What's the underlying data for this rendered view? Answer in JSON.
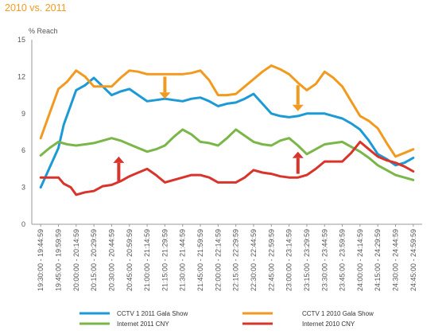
{
  "chart_data": {
    "type": "line",
    "title": "2010 vs. 2011",
    "ylabel": "% Reach",
    "xlabel": "",
    "ylim": [
      0,
      15
    ],
    "yticks": [
      0,
      3,
      6,
      9,
      12,
      15
    ],
    "grid": false,
    "legend_position": "bottom",
    "categories": [
      "19:30:00 - 19:44:59",
      "19:45:00 - 19:59:59",
      "20:00:00 - 20:14:59",
      "20:15:00 - 20:29:59",
      "20:30:00 - 20:44:59",
      "20:45:00 - 20:59:59",
      "21:00:00 - 21:14:59",
      "21:15:00 - 21:29:59",
      "21:30:00 - 21:44:59",
      "21:45:00 - 21:59:59",
      "22:00:00 - 22:14:59",
      "22:15:00 - 22:29:59",
      "22:30:00 - 22:44:59",
      "22:45:00 - 22:59:59",
      "23:00:00 - 23:14:59",
      "23:15:00 - 23:29:59",
      "23:30:00 - 23:44:59",
      "23:45:00 - 23:59:59",
      "24:00:00 - 24:14:59",
      "24:15:00 - 24:29:59",
      "24:30:00 - 24:44:59",
      "24:45:00 - 24:59:59"
    ],
    "series": [
      {
        "name": "CCTV 1 2011 Gala Show",
        "color": "#1b9ad6",
        "x": [
          0,
          1,
          1.3,
          2,
          2.5,
          3,
          3.5,
          4,
          4.5,
          5,
          5.5,
          6,
          6.5,
          7,
          7.5,
          8,
          8.5,
          9,
          9.5,
          10,
          10.5,
          11,
          11.5,
          12,
          12.5,
          13,
          13.5,
          14,
          14.5,
          15,
          15.5,
          16,
          16.5,
          17,
          17.5,
          18,
          18.5,
          19,
          19.5,
          20,
          20.5,
          21
        ],
        "values": [
          3.0,
          6.2,
          8.1,
          10.9,
          11.3,
          11.9,
          11.2,
          10.5,
          10.8,
          11.0,
          10.5,
          10.0,
          10.1,
          10.2,
          10.1,
          10.0,
          10.2,
          10.3,
          10.0,
          9.6,
          9.8,
          9.9,
          10.2,
          10.6,
          9.8,
          9.0,
          8.8,
          8.7,
          8.8,
          9.0,
          9.0,
          9.0,
          8.8,
          8.6,
          8.2,
          7.7,
          6.8,
          5.7,
          5.3,
          4.8,
          5.0,
          5.4
        ]
      },
      {
        "name": "CCTV 1 2010 Gala Show",
        "color": "#f29a1f",
        "x": [
          0,
          0.5,
          1,
          1.5,
          2,
          2.5,
          3,
          3.5,
          4,
          4.5,
          5,
          5.5,
          6,
          6.5,
          7,
          7.5,
          8,
          8.5,
          9,
          9.5,
          10,
          10.5,
          11,
          11.5,
          12,
          12.5,
          13,
          13.5,
          14,
          14.5,
          15,
          15.5,
          16,
          16.5,
          17,
          17.5,
          18,
          18.5,
          19,
          19.5,
          20,
          20.5,
          21
        ],
        "values": [
          7.0,
          9.0,
          11.0,
          11.6,
          12.5,
          12.0,
          11.2,
          11.2,
          11.2,
          11.9,
          12.5,
          12.4,
          12.2,
          12.2,
          12.2,
          12.2,
          12.2,
          12.3,
          12.5,
          11.7,
          10.5,
          10.5,
          10.6,
          11.2,
          11.8,
          12.4,
          12.9,
          12.6,
          12.2,
          11.5,
          10.9,
          11.4,
          12.4,
          11.9,
          11.2,
          10.0,
          8.8,
          8.4,
          7.8,
          6.6,
          5.5,
          5.8,
          6.1
        ]
      },
      {
        "name": "Internet 2011 CNY",
        "color": "#7ab648",
        "x": [
          0,
          0.5,
          1,
          1.5,
          2,
          2.5,
          3,
          3.5,
          4,
          4.5,
          5,
          5.5,
          6,
          6.5,
          7,
          7.5,
          8,
          8.5,
          9,
          9.5,
          10,
          10.5,
          11,
          11.5,
          12,
          12.5,
          13,
          13.5,
          14,
          14.5,
          15,
          15.5,
          16,
          16.5,
          17,
          17.5,
          18,
          18.5,
          19,
          19.5,
          20,
          20.5,
          21
        ],
        "values": [
          5.6,
          6.2,
          6.7,
          6.5,
          6.4,
          6.5,
          6.6,
          6.8,
          7.0,
          6.8,
          6.5,
          6.2,
          5.9,
          6.1,
          6.4,
          7.1,
          7.7,
          7.3,
          6.7,
          6.6,
          6.4,
          7.0,
          7.7,
          7.2,
          6.7,
          6.5,
          6.4,
          6.8,
          7.0,
          6.4,
          5.7,
          6.1,
          6.5,
          6.6,
          6.7,
          6.3,
          5.9,
          5.4,
          4.8,
          4.4,
          4.0,
          3.8,
          3.6
        ]
      },
      {
        "name": "Internet 2010 CNY",
        "color": "#d9342b",
        "x": [
          0,
          0.5,
          1,
          1.3,
          1.7,
          2,
          2.5,
          3,
          3.5,
          4,
          4.5,
          5,
          5.5,
          6,
          6.5,
          7,
          7.5,
          8,
          8.5,
          9,
          9.5,
          10,
          10.5,
          11,
          11.5,
          12,
          12.5,
          13,
          13.5,
          14,
          14.5,
          15,
          15.5,
          16,
          16.5,
          17,
          17.5,
          18,
          18.5,
          19,
          19.5,
          20,
          20.5,
          21
        ],
        "values": [
          3.8,
          3.8,
          3.8,
          3.3,
          3.0,
          2.4,
          2.6,
          2.7,
          3.1,
          3.2,
          3.5,
          3.9,
          4.2,
          4.5,
          4.0,
          3.4,
          3.6,
          3.8,
          4.0,
          4.0,
          3.8,
          3.4,
          3.4,
          3.4,
          3.8,
          4.4,
          4.2,
          4.1,
          3.9,
          3.8,
          3.8,
          4.0,
          4.5,
          5.1,
          5.1,
          5.1,
          5.8,
          6.7,
          6.1,
          5.5,
          5.2,
          5.0,
          4.7,
          4.3
        ]
      }
    ],
    "annotations": [
      {
        "type": "arrow-down",
        "color": "#f29a1f",
        "x": 7,
        "y_from": 12.0,
        "y_to": 10.2
      },
      {
        "type": "arrow-down",
        "color": "#f29a1f",
        "x": 14.5,
        "y_from": 11.3,
        "y_to": 9.2
      },
      {
        "type": "arrow-up",
        "color": "#d9342b",
        "x": 4.4,
        "y_from": 3.5,
        "y_to": 5.5
      },
      {
        "type": "arrow-up",
        "color": "#d9342b",
        "x": 14.5,
        "y_from": 4.1,
        "y_to": 5.9
      }
    ]
  }
}
